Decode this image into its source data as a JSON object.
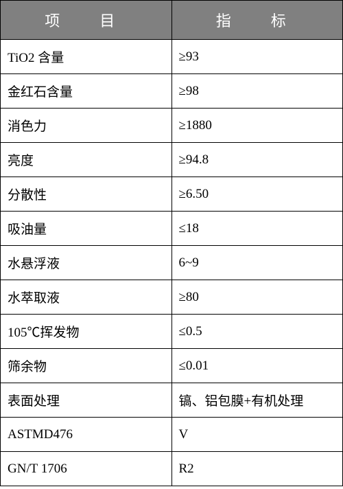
{
  "table": {
    "type": "table",
    "columns": [
      {
        "label": "项　目",
        "width": "40%",
        "align": "center"
      },
      {
        "label": "指　标",
        "width": "60%",
        "align": "center"
      }
    ],
    "header_bg_color": "#808080",
    "header_text_color": "#ffffff",
    "border_color": "#000000",
    "cell_text_color": "#000000",
    "font_family": "SimSun",
    "header_fontsize": 22,
    "cell_fontsize": 19,
    "rows": [
      {
        "item": "TiO2 含量",
        "value": "≥93"
      },
      {
        "item": "金红石含量",
        "value": "≥98"
      },
      {
        "item": "消色力",
        "value": "≥1880"
      },
      {
        "item": "亮度",
        "value": "≥94.8"
      },
      {
        "item": "分散性",
        "value": "≥6.50"
      },
      {
        "item": "吸油量",
        "value": "≤18"
      },
      {
        "item": "水悬浮液",
        "value": "6~9"
      },
      {
        "item": "水萃取液",
        "value": "≥80"
      },
      {
        "item": "105℃挥发物",
        "value": "≤0.5"
      },
      {
        "item": "筛余物",
        "value": "≤0.01"
      },
      {
        "item": "表面处理",
        "value": "镐、铝包膜+有机处理"
      },
      {
        "item": "ASTMD476",
        "value": "V"
      },
      {
        "item": "GN/T  1706",
        "value": "R2"
      }
    ]
  }
}
